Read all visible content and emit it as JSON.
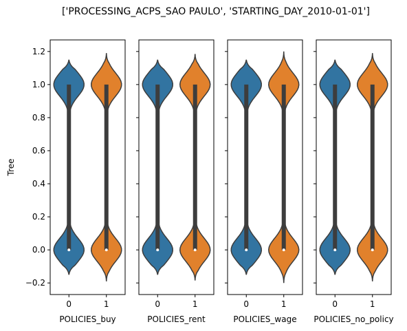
{
  "chart_data": {
    "type": "violin",
    "title": "['PROCESSING_ACPS_SAO PAULO', 'STARTING_DAY_2010-01-01']",
    "ylabel": "Tree",
    "ylim": [
      -0.27,
      1.27
    ],
    "yticks": [
      -0.2,
      0.0,
      0.2,
      0.4,
      0.6,
      0.8,
      1.0,
      1.2
    ],
    "ytick_labels": [
      "−0.2",
      "0.0",
      "0.2",
      "0.4",
      "0.6",
      "0.8",
      "1.0",
      "1.2"
    ],
    "sharey": true,
    "grid": false,
    "colors": {
      "0": "#3274a1",
      "1": "#e1812c"
    },
    "panels": [
      {
        "xlabel": "POLICIES_buy",
        "categories": [
          "0",
          "1"
        ],
        "violins": [
          {
            "category": "0",
            "range": [
              -0.15,
              1.15
            ],
            "median": 0.0,
            "q1": 0.0,
            "q3": 1.0
          },
          {
            "category": "1",
            "range": [
              -0.19,
              1.19
            ],
            "median": 0.0,
            "q1": 0.0,
            "q3": 1.0
          }
        ]
      },
      {
        "xlabel": "POLICIES_rent",
        "categories": [
          "0",
          "1"
        ],
        "violins": [
          {
            "category": "0",
            "range": [
              -0.15,
              1.15
            ],
            "median": 0.0,
            "q1": 0.0,
            "q3": 1.0
          },
          {
            "category": "1",
            "range": [
              -0.185,
              1.185
            ],
            "median": 0.0,
            "q1": 0.0,
            "q3": 1.0
          }
        ]
      },
      {
        "xlabel": "POLICIES_wage",
        "categories": [
          "0",
          "1"
        ],
        "violins": [
          {
            "category": "0",
            "range": [
              -0.15,
              1.15
            ],
            "median": 0.0,
            "q1": 0.0,
            "q3": 1.0
          },
          {
            "category": "1",
            "range": [
              -0.2,
              1.2
            ],
            "median": 0.0,
            "q1": 0.0,
            "q3": 1.0
          }
        ]
      },
      {
        "xlabel": "POLICIES_no_policy",
        "categories": [
          "0",
          "1"
        ],
        "violins": [
          {
            "category": "0",
            "range": [
              -0.15,
              1.15
            ],
            "median": 0.0,
            "q1": 0.0,
            "q3": 1.0
          },
          {
            "category": "1",
            "range": [
              -0.19,
              1.19
            ],
            "median": 0.0,
            "q1": 0.0,
            "q3": 1.0
          }
        ]
      }
    ]
  }
}
